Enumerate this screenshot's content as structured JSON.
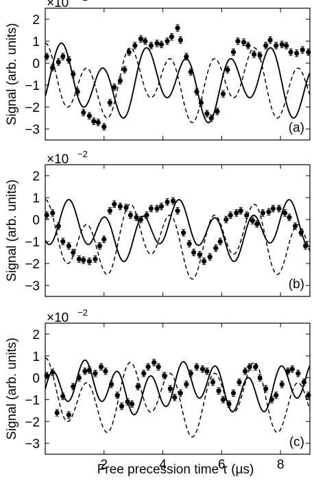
{
  "figure": {
    "xlabel": "Free precession time τ (µs)",
    "ylabel": "Signal (arb. units)",
    "multiplier_base": "×10",
    "multiplier_exp": "−2"
  },
  "chart_data": [
    {
      "type": "line",
      "panel_label": "(a)",
      "xlim": [
        0,
        9
      ],
      "ylim": [
        -3.5,
        2.5
      ],
      "x_ticks": [
        2,
        4,
        6,
        8
      ],
      "x_tick_labels": [
        "2",
        "4",
        "6",
        "8"
      ],
      "y_ticks": [
        -3,
        -2,
        -1,
        0,
        1,
        2
      ],
      "y_tick_labels": [
        "−3",
        "−2",
        "−1",
        "0",
        "1",
        "2"
      ],
      "y_scale_note": "×10^-2",
      "fit_solid": {
        "style": "solid",
        "x0": 0,
        "x1": 9,
        "freqs": [
          0.7,
          0.3
        ],
        "amps": [
          1.21,
          0.6
        ],
        "phase": 0.55,
        "offset": -0.9
      },
      "fit_dashed": {
        "style": "dashed",
        "x0": 0,
        "x1": 9,
        "freqs": [
          0.7,
          0.3
        ],
        "amps": [
          1.21,
          0.6
        ],
        "phase": 0,
        "offset": -0.9
      },
      "points": {
        "x": [
          0.05,
          0.25,
          0.45,
          0.6,
          0.8,
          0.95,
          1.1,
          1.3,
          1.5,
          1.65,
          1.8,
          2.0,
          2.2,
          2.35,
          2.55,
          2.7,
          2.85,
          3.05,
          3.25,
          3.4,
          3.6,
          3.8,
          3.95,
          4.15,
          4.3,
          4.5,
          4.6,
          4.8,
          4.95,
          5.15,
          5.3,
          5.5,
          5.65,
          5.85,
          6.05,
          6.2,
          6.4,
          6.55,
          6.75,
          6.9,
          7.1,
          7.3,
          7.5,
          7.65,
          7.85,
          8.05,
          8.2,
          8.35,
          8.55,
          8.75,
          8.95
        ],
        "y": [
          0.3,
          -0.2,
          0.05,
          0.3,
          0.15,
          -0.5,
          -1.3,
          -2.25,
          -2.4,
          -2.65,
          -2.7,
          -2.9,
          -1.8,
          -1.1,
          -0.8,
          -0.3,
          0.5,
          0.8,
          1.1,
          1.0,
          0.8,
          0.9,
          0.85,
          1.0,
          1.2,
          1.6,
          1.05,
          0.3,
          -0.4,
          -1.3,
          -1.8,
          -2.3,
          -2.5,
          -2.2,
          -1.4,
          -0.3,
          0.5,
          1.0,
          0.95,
          0.8,
          0.4,
          0.35,
          0.8,
          1.05,
          0.8,
          0.85,
          0.8,
          0.5,
          0.45,
          0.6,
          0.5
        ],
        "yerr": 0.15
      }
    },
    {
      "type": "line",
      "panel_label": "(b)",
      "xlim": [
        0,
        9
      ],
      "ylim": [
        -3.5,
        2.5
      ],
      "x_ticks": [
        2,
        4,
        6,
        8
      ],
      "x_tick_labels": [
        "2",
        "4",
        "6",
        "8"
      ],
      "y_ticks": [
        -3,
        -2,
        -1,
        0,
        1,
        2
      ],
      "y_tick_labels": [
        "−3",
        "−2",
        "−1",
        "0",
        "1",
        "2"
      ],
      "y_scale_note": "×10^-2",
      "fit_solid": {
        "style": "solid",
        "x0": 0,
        "x1": 9,
        "freqs": [
          0.8,
          0.27
        ],
        "amps": [
          0.88,
          0.53
        ],
        "phase": 0.8,
        "offset": -0.5
      },
      "fit_dashed": {
        "style": "dashed",
        "x0": 0,
        "x1": 9,
        "freqs": [
          0.7,
          0.3
        ],
        "amps": [
          1.21,
          0.6
        ],
        "phase": 0,
        "offset": -0.9
      },
      "points": {
        "x": [
          0.05,
          0.25,
          0.45,
          0.6,
          0.8,
          0.95,
          1.15,
          1.3,
          1.5,
          1.7,
          1.85,
          2.0,
          2.2,
          2.35,
          2.55,
          2.75,
          2.9,
          3.1,
          3.25,
          3.45,
          3.6,
          3.8,
          3.95,
          4.15,
          4.35,
          4.5,
          4.7,
          4.9,
          5.05,
          5.25,
          5.4,
          5.6,
          5.8,
          5.95,
          6.15,
          6.3,
          6.5,
          6.65,
          6.85,
          7.05,
          7.2,
          7.4,
          7.6,
          7.75,
          7.95,
          8.15,
          8.3,
          8.5,
          8.7,
          8.85
        ],
        "y": [
          0.2,
          0.3,
          -0.3,
          -1.0,
          -1.2,
          -1.5,
          -1.8,
          -1.85,
          -1.9,
          -1.8,
          -1.2,
          -0.9,
          0.4,
          0.7,
          0.6,
          0.55,
          0.2,
          0.1,
          0.0,
          0.2,
          0.5,
          0.5,
          0.6,
          0.8,
          0.85,
          0.4,
          -0.6,
          -1.1,
          -1.5,
          -1.6,
          -1.9,
          -1.7,
          -1.3,
          -1.0,
          0.0,
          0.2,
          0.3,
          0.4,
          0.2,
          -0.05,
          -0.2,
          0.3,
          0.35,
          0.5,
          0.5,
          0.3,
          0.1,
          -0.3,
          -0.6,
          -1.2
        ],
        "yerr": 0.15
      }
    },
    {
      "type": "line",
      "panel_label": "(c)",
      "xlim": [
        0,
        9
      ],
      "ylim": [
        -3.5,
        2.5
      ],
      "x_ticks": [
        2,
        4,
        6,
        8
      ],
      "x_tick_labels": [
        "2",
        "4",
        "6",
        "8"
      ],
      "y_ticks": [
        -3,
        -2,
        -1,
        0,
        1,
        2
      ],
      "y_tick_labels": [
        "−3",
        "−2",
        "−1",
        "0",
        "1",
        "2"
      ],
      "y_scale_note": "×10^-2",
      "fit_solid": {
        "style": "solid",
        "x0": 0,
        "x1": 9,
        "freqs": [
          0.9,
          0.27
        ],
        "amps": [
          0.86,
          0.4
        ],
        "phase": 1.35,
        "offset": -0.45
      },
      "fit_dashed": {
        "style": "dashed",
        "x0": 0,
        "x1": 9,
        "freqs": [
          0.7,
          0.3
        ],
        "amps": [
          1.21,
          0.6
        ],
        "phase": 0,
        "offset": -0.9
      },
      "points": {
        "x": [
          0.05,
          0.25,
          0.4,
          0.6,
          0.8,
          0.95,
          1.15,
          1.35,
          1.5,
          1.7,
          1.9,
          2.05,
          2.25,
          2.45,
          2.6,
          2.8,
          2.95,
          3.15,
          3.35,
          3.5,
          3.7,
          3.85,
          4.05,
          4.25,
          4.4,
          4.6,
          4.8,
          4.95,
          5.15,
          5.35,
          5.5,
          5.7,
          5.9,
          6.05,
          6.25,
          6.4,
          6.6,
          6.8,
          6.95,
          7.15,
          7.3,
          7.5,
          7.7,
          7.85,
          8.05,
          8.25,
          8.4,
          8.6,
          8.8,
          8.95
        ],
        "y": [
          0.1,
          0.25,
          -1.6,
          -0.85,
          -1.7,
          -0.4,
          0.0,
          0.3,
          0.35,
          0.2,
          0.5,
          0.3,
          -0.3,
          -0.8,
          -1.3,
          -1.1,
          -1.2,
          -0.4,
          0.2,
          0.5,
          0.7,
          0.5,
          0.1,
          -0.5,
          -0.9,
          -0.7,
          -0.3,
          0.2,
          0.5,
          0.4,
          0.3,
          -0.2,
          -0.6,
          -1.0,
          -1.2,
          -0.7,
          -0.2,
          0.3,
          0.5,
          0.5,
          0.0,
          -0.5,
          -1.0,
          -0.8,
          -0.3,
          0.3,
          0.4,
          0.2,
          -0.2,
          -0.8
        ],
        "yerr": 0.15
      }
    }
  ]
}
